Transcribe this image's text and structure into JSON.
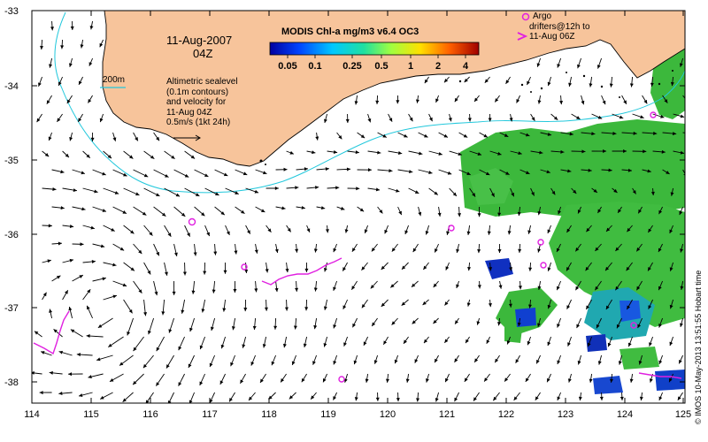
{
  "map": {
    "date": "11-Aug-2007",
    "time": "04Z",
    "isobath_label": "200m",
    "info_lines": [
      "Altimetric sealevel",
      "(0.1m contours)",
      "and velocity for",
      "11-Aug 04Z",
      "0.5m/s (1kt 24h)"
    ],
    "colorbar": {
      "title": "MODIS Chl-a mg/m3 v6.4 OC3",
      "labels": [
        "0.05",
        "0.1",
        "0.25",
        "0.5",
        "1",
        "2",
        "4"
      ]
    },
    "argo": {
      "legend_lines": [
        "Argo",
        "drifters@12h to",
        "11-Aug 06Z"
      ]
    },
    "timestamp": "© IMOS 10-May-2013 13:51:55 Hobart time",
    "x_ticks": [
      "114",
      "115",
      "116",
      "117",
      "118",
      "119",
      "120",
      "121",
      "122",
      "123",
      "124",
      "125"
    ],
    "y_ticks": [
      "-33",
      "-34",
      "-35",
      "-36",
      "-37",
      "-38"
    ]
  },
  "colors": {
    "land": "#f7c49b",
    "coast": "#000000",
    "isobath": "#22c8dc",
    "argo": "#e020e0",
    "arrow": "#000000"
  }
}
